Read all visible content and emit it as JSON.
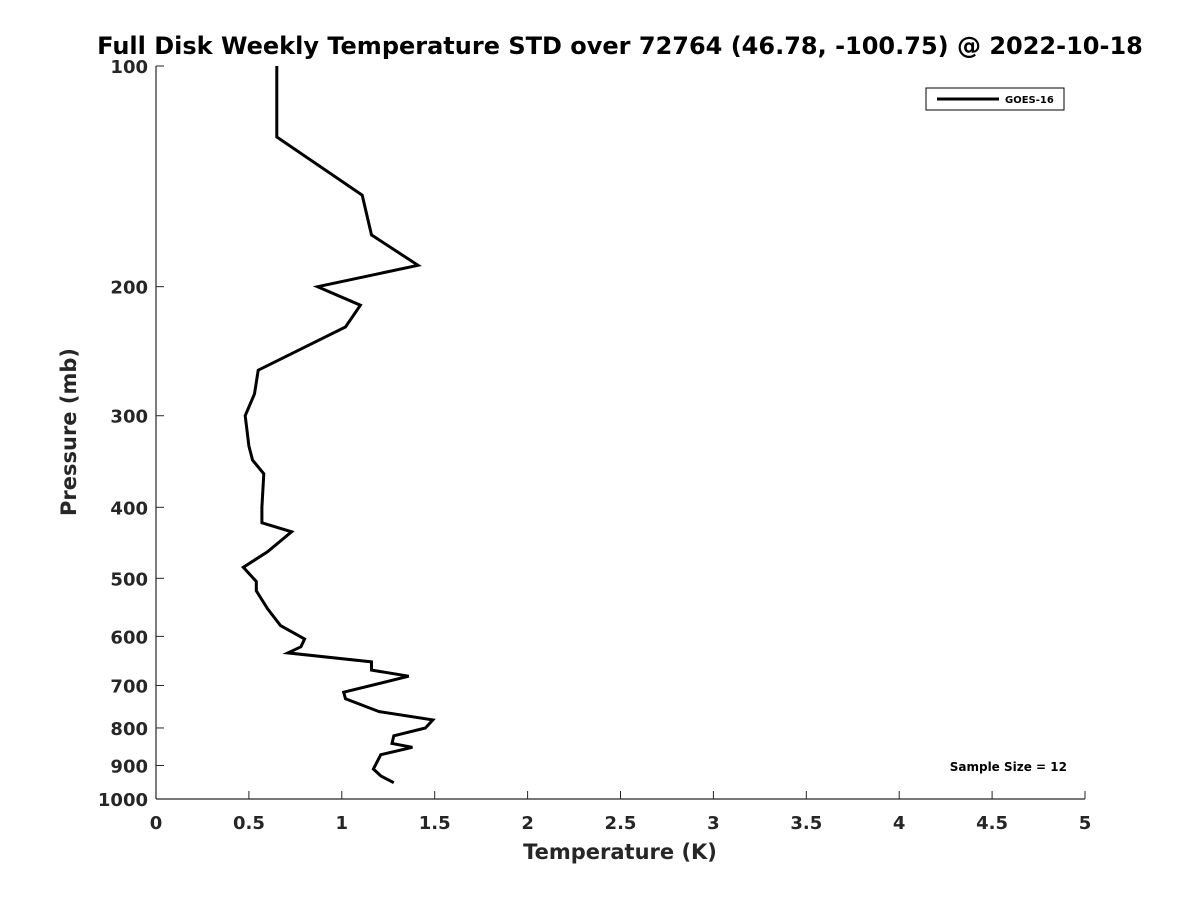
{
  "chart_data": {
    "type": "line",
    "title": "Full Disk Weekly Temperature STD over 72764 (46.78, -100.75) @ 2022-10-18",
    "xlabel": "Temperature (K)",
    "ylabel": "Pressure (mb)",
    "xlim": [
      0,
      5
    ],
    "ylim": [
      100,
      1000
    ],
    "y_scale": "log",
    "y_reversed": true,
    "x_ticks": [
      0,
      0.5,
      1,
      1.5,
      2,
      2.5,
      3,
      3.5,
      4,
      4.5,
      5
    ],
    "x_tick_labels": [
      "0",
      "0.5",
      "1",
      "1.5",
      "2",
      "2.5",
      "3",
      "3.5",
      "4",
      "4.5",
      "5"
    ],
    "y_ticks": [
      100,
      200,
      300,
      400,
      500,
      600,
      700,
      800,
      900,
      1000
    ],
    "y_tick_labels": [
      "100",
      "200",
      "300",
      "400",
      "500",
      "600",
      "700",
      "800",
      "900",
      "1000"
    ],
    "grid": false,
    "legend_position": "top-right",
    "annotation": "Sample Size = 12",
    "series": [
      {
        "name": "GOES-16",
        "color": "#000000",
        "points": [
          [
            0.65,
            100
          ],
          [
            0.65,
            125
          ],
          [
            1.11,
            150
          ],
          [
            1.16,
            170
          ],
          [
            1.41,
            187
          ],
          [
            0.87,
            200
          ],
          [
            1.1,
            212
          ],
          [
            1.02,
            227
          ],
          [
            0.55,
            260
          ],
          [
            0.53,
            280
          ],
          [
            0.48,
            300
          ],
          [
            0.5,
            330
          ],
          [
            0.52,
            345
          ],
          [
            0.58,
            360
          ],
          [
            0.57,
            400
          ],
          [
            0.57,
            420
          ],
          [
            0.73,
            432
          ],
          [
            0.6,
            460
          ],
          [
            0.47,
            483
          ],
          [
            0.54,
            505
          ],
          [
            0.54,
            520
          ],
          [
            0.6,
            550
          ],
          [
            0.67,
            580
          ],
          [
            0.8,
            605
          ],
          [
            0.78,
            620
          ],
          [
            0.71,
            632
          ],
          [
            1.16,
            650
          ],
          [
            1.16,
            667
          ],
          [
            1.36,
            680
          ],
          [
            1.01,
            715
          ],
          [
            1.02,
            730
          ],
          [
            1.2,
            760
          ],
          [
            1.49,
            780
          ],
          [
            1.45,
            800
          ],
          [
            1.28,
            820
          ],
          [
            1.27,
            840
          ],
          [
            1.38,
            850
          ],
          [
            1.21,
            870
          ],
          [
            1.17,
            910
          ],
          [
            1.21,
            930
          ],
          [
            1.28,
            950
          ]
        ]
      }
    ]
  }
}
